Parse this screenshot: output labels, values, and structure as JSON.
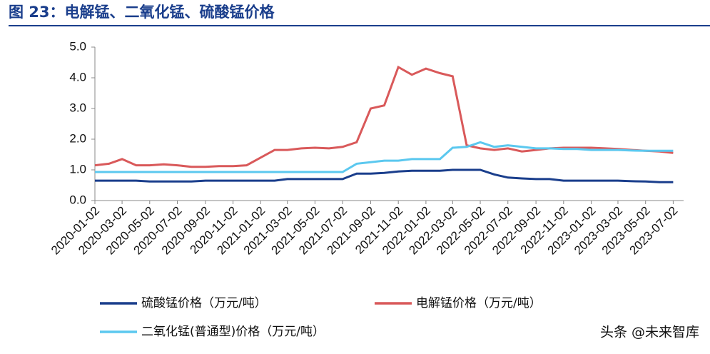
{
  "chart_data": {
    "type": "line",
    "title": "图 23：电解锰、二氧化锰、硫酸锰价格",
    "watermark": "头条 @未来智库",
    "x": [
      "2020-01-02",
      "2020-02-02",
      "2020-03-02",
      "2020-04-02",
      "2020-05-02",
      "2020-06-02",
      "2020-07-02",
      "2020-08-02",
      "2020-09-02",
      "2020-10-02",
      "2020-11-02",
      "2020-12-02",
      "2021-01-02",
      "2021-02-02",
      "2021-03-02",
      "2021-04-02",
      "2021-05-02",
      "2021-06-02",
      "2021-07-02",
      "2021-08-02",
      "2021-09-02",
      "2021-10-02",
      "2021-11-02",
      "2021-12-02",
      "2022-01-02",
      "2022-02-02",
      "2022-03-02",
      "2022-04-02",
      "2022-05-02",
      "2022-06-02",
      "2022-07-02",
      "2022-08-02",
      "2022-09-02",
      "2022-10-02",
      "2022-11-02",
      "2022-12-02",
      "2023-01-02",
      "2023-02-02",
      "2023-03-02",
      "2023-04-02",
      "2023-05-02",
      "2023-06-02",
      "2023-07-02"
    ],
    "series": [
      {
        "name": "硫酸锰价格（万元/吨）",
        "color": "#1a3e8c",
        "values": [
          0.65,
          0.65,
          0.65,
          0.65,
          0.62,
          0.62,
          0.62,
          0.62,
          0.65,
          0.65,
          0.65,
          0.65,
          0.65,
          0.65,
          0.7,
          0.7,
          0.7,
          0.7,
          0.7,
          0.88,
          0.88,
          0.9,
          0.95,
          0.97,
          0.97,
          0.97,
          1.0,
          1.0,
          1.0,
          0.85,
          0.75,
          0.72,
          0.7,
          0.7,
          0.65,
          0.65,
          0.65,
          0.65,
          0.65,
          0.63,
          0.62,
          0.6,
          0.6
        ]
      },
      {
        "name": "电解锰价格（万元/吨）",
        "color": "#d9595a",
        "values": [
          1.15,
          1.2,
          1.35,
          1.15,
          1.15,
          1.18,
          1.15,
          1.1,
          1.1,
          1.12,
          1.12,
          1.15,
          1.4,
          1.65,
          1.65,
          1.7,
          1.72,
          1.7,
          1.75,
          1.9,
          3.0,
          3.1,
          4.35,
          4.1,
          4.3,
          4.15,
          4.05,
          1.8,
          1.7,
          1.65,
          1.7,
          1.6,
          1.65,
          1.7,
          1.72,
          1.72,
          1.72,
          1.7,
          1.68,
          1.65,
          1.62,
          1.6,
          1.55
        ]
      },
      {
        "name": "二氧化锰(普通型)价格（万元/吨）",
        "color": "#5bc8ef",
        "values": [
          0.93,
          0.93,
          0.93,
          0.93,
          0.93,
          0.93,
          0.93,
          0.93,
          0.93,
          0.93,
          0.93,
          0.93,
          0.93,
          0.93,
          0.93,
          0.93,
          0.93,
          0.93,
          0.93,
          1.2,
          1.25,
          1.3,
          1.3,
          1.35,
          1.35,
          1.35,
          1.72,
          1.75,
          1.9,
          1.75,
          1.8,
          1.75,
          1.7,
          1.7,
          1.68,
          1.68,
          1.65,
          1.65,
          1.65,
          1.63,
          1.62,
          1.62,
          1.62
        ]
      }
    ],
    "xlim": [
      "2020-01-02",
      "2023-07-25"
    ],
    "xticks": [
      "2020-01-02",
      "2020-03-02",
      "2020-05-02",
      "2020-07-02",
      "2020-09-02",
      "2020-11-02",
      "2021-01-02",
      "2021-03-02",
      "2021-05-02",
      "2021-07-02",
      "2021-09-02",
      "2021-11-02",
      "2022-01-02",
      "2022-03-02",
      "2022-05-02",
      "2022-07-02",
      "2022-09-02",
      "2022-11-02",
      "2023-01-02",
      "2023-03-02",
      "2023-05-02",
      "2023-07-02"
    ],
    "ylim": [
      0,
      5
    ],
    "yticks": [
      {
        "value": 0,
        "label": "0.0"
      },
      {
        "value": 1,
        "label": "1.0"
      },
      {
        "value": 2,
        "label": "2.0"
      },
      {
        "value": 3,
        "label": "3.0"
      },
      {
        "value": 4,
        "label": "4.0"
      },
      {
        "value": 5,
        "label": "5.0"
      }
    ],
    "grid": false
  }
}
